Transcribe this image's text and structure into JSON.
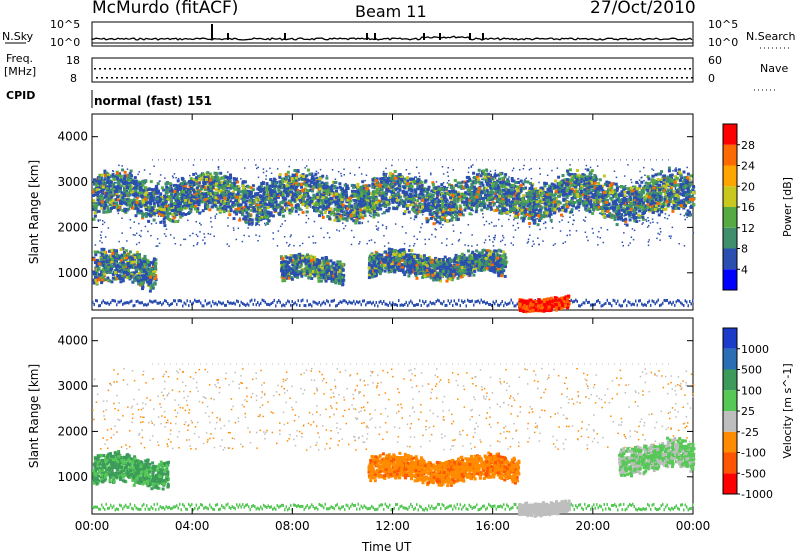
{
  "header": {
    "station": "McMurdo (fitACF)",
    "beam": "Beam 11",
    "date": "27/Oct/2010"
  },
  "noise_panel": {
    "left_label": "N.Sky",
    "left_ticks": [
      "10^5",
      "10^0"
    ],
    "right_label": "N.Search",
    "right_ticks": [
      "10^5",
      "10^0"
    ]
  },
  "freq_panel": {
    "left_label_1": "Freq.",
    "left_label_2": "[MHz]",
    "left_ticks": [
      "18",
      "8"
    ],
    "right_label": "Nave",
    "right_ticks": [
      "60",
      "0"
    ]
  },
  "cpid": {
    "label": "CPID",
    "mode": "normal (fast) 151"
  },
  "x_axis": {
    "label": "Time UT",
    "ticks": [
      "00:00",
      "04:00",
      "08:00",
      "12:00",
      "16:00",
      "20:00",
      "00:00"
    ]
  },
  "colors": {
    "axis": "#000000",
    "power_scale": [
      "#0000ff",
      "#2a4fb0",
      "#3f8f6f",
      "#55aa44",
      "#c8c81e",
      "#ffa500",
      "#ff6a00",
      "#ff0000"
    ],
    "velocity_scale": [
      "#ff0000",
      "#ff5500",
      "#ff8c00",
      "#bebebe",
      "#55c855",
      "#3c9a5a",
      "#2a6fb5",
      "#1a3cc8"
    ]
  },
  "chart_data": [
    {
      "type": "heatmap",
      "title": "",
      "xlabel": "Time UT",
      "ylabel": "Slant Range [km]",
      "xlim": [
        "00:00",
        "24:00"
      ],
      "ylim": [
        180,
        4500
      ],
      "yticks": [
        "1000",
        "2000",
        "3000",
        "4000"
      ],
      "colorbar": {
        "label": "Power [dB]",
        "ticks": [
          "4",
          "8",
          "12",
          "16",
          "20",
          "24",
          "28"
        ],
        "range": [
          0,
          30
        ]
      },
      "features": [
        {
          "time_start": "00:00",
          "time_end": "02:30",
          "range_km": [
            700,
            1500
          ],
          "value": "8-20"
        },
        {
          "time_start": "07:30",
          "time_end": "10:00",
          "range_km": [
            800,
            1400
          ],
          "value": "12-24"
        },
        {
          "time_start": "11:00",
          "time_end": "16:30",
          "range_km": [
            900,
            1500
          ],
          "value": "12-24"
        },
        {
          "time_start": "17:00",
          "time_end": "19:00",
          "range_km": [
            200,
            500
          ],
          "value": "28"
        },
        {
          "time_start": "00:00",
          "time_end": "24:00",
          "range_km": [
            2200,
            3200
          ],
          "value": "4-12"
        }
      ]
    },
    {
      "type": "heatmap",
      "title": "",
      "xlabel": "Time UT",
      "ylabel": "Slant Range [km]",
      "xlim": [
        "00:00",
        "24:00"
      ],
      "ylim": [
        180,
        4500
      ],
      "yticks": [
        "1000",
        "2000",
        "3000",
        "4000"
      ],
      "colorbar": {
        "label": "Velocity [m s^-1]",
        "ticks": [
          "1000",
          "500",
          "100",
          "25",
          "-25",
          "-100",
          "-500",
          "-1000"
        ]
      },
      "features": [
        {
          "time_start": "00:00",
          "time_end": "03:00",
          "range_km": [
            800,
            1500
          ],
          "value": "100 to 500"
        },
        {
          "time_start": "11:00",
          "time_end": "17:00",
          "range_km": [
            900,
            1500
          ],
          "value": "-100 to -500"
        },
        {
          "time_start": "17:00",
          "time_end": "19:00",
          "range_km": [
            200,
            500
          ],
          "value": "-25 to 25"
        },
        {
          "time_start": "21:00",
          "time_end": "24:00",
          "range_km": [
            1100,
            1800
          ],
          "value": "25 to 100"
        }
      ]
    }
  ]
}
